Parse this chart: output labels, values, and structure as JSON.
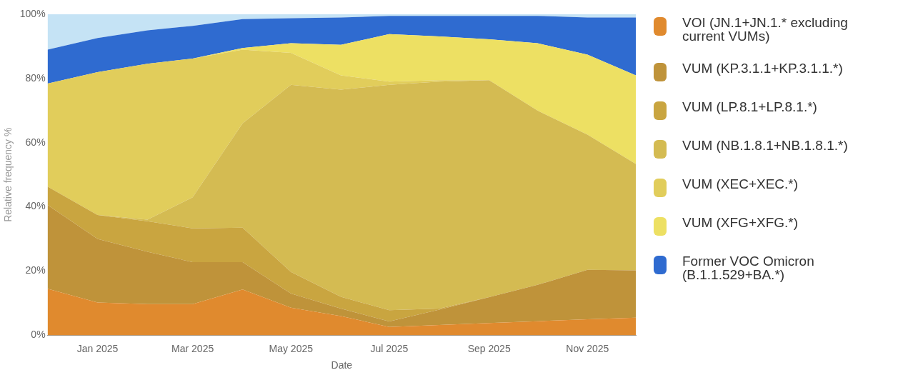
{
  "chart_data": {
    "type": "area",
    "stacked": true,
    "xlabel": "Date",
    "ylabel": "Relative frequency %",
    "x": [
      "2024-12-01",
      "2025-01-01",
      "2025-02-01",
      "2025-03-01",
      "2025-04-01",
      "2025-05-01",
      "2025-06-01",
      "2025-07-01",
      "2025-08-01",
      "2025-09-01",
      "2025-10-01",
      "2025-11-01",
      "2025-12-01"
    ],
    "xlim": [
      "2024-12-01",
      "2025-12-01"
    ],
    "xticks": [
      {
        "value": "2025-01-01",
        "label": "Jan 2025"
      },
      {
        "value": "2025-03-01",
        "label": "Mar 2025"
      },
      {
        "value": "2025-05-01",
        "label": "May 2025"
      },
      {
        "value": "2025-07-01",
        "label": "Jul 2025"
      },
      {
        "value": "2025-09-01",
        "label": "Sep 2025"
      },
      {
        "value": "2025-11-01",
        "label": "Nov 2025"
      }
    ],
    "ylim": [
      0,
      100
    ],
    "yticks": [
      {
        "value": 0,
        "label": "0%"
      },
      {
        "value": 20,
        "label": "20%"
      },
      {
        "value": 40,
        "label": "40%"
      },
      {
        "value": 60,
        "label": "60%"
      },
      {
        "value": 80,
        "label": "80%"
      },
      {
        "value": 100,
        "label": "100%"
      }
    ],
    "legend": "right",
    "marker": "none",
    "series": [
      {
        "name": "VOI (JN.1+JN.1.* excluding current VUMs)",
        "color": "#e08a2e",
        "values": [
          14.5,
          10.2,
          9.7,
          9.7,
          14.3,
          8.6,
          6,
          2.6,
          3.2,
          3.8,
          4.4,
          5,
          5.5
        ]
      },
      {
        "name": "VUM (KP.3.1.1+KP.3.1.1.*)",
        "color": "#bf933a",
        "values": [
          26.1,
          19.8,
          16.3,
          13.1,
          8.5,
          4.4,
          2.3,
          1.7,
          4.8,
          8.1,
          11.3,
          15.4,
          14.7
        ]
      },
      {
        "name": "VUM (LP.8.1+LP.8.1.*)",
        "color": "#c9a540",
        "values": [
          5.7,
          7.5,
          9.5,
          10.5,
          10.7,
          6.7,
          3.7,
          3.5,
          0.3,
          0,
          0,
          0,
          0
        ]
      },
      {
        "name": "VUM (NB.1.8.1+NB.1.8.1.*)",
        "color": "#d4bb52",
        "values": [
          0,
          0,
          0.5,
          9.7,
          32.5,
          58.3,
          64.5,
          70.2,
          70.7,
          67.6,
          54.3,
          42.1,
          33.2
        ]
      },
      {
        "name": "VUM (XEC+XEC.*)",
        "color": "#e1cd5b",
        "values": [
          32.1,
          44.5,
          48.6,
          43.2,
          23,
          10,
          4.5,
          1,
          0.5,
          0,
          0,
          0,
          0
        ]
      },
      {
        "name": "VUM (XFG+XFG.*)",
        "color": "#ede063",
        "values": [
          0,
          0,
          0,
          0,
          0.5,
          3,
          9.5,
          14.8,
          13.6,
          12.7,
          21,
          24.9,
          27.6
        ]
      },
      {
        "name": "Former VOC Omicron (B.1.1.529+BA.*)",
        "color": "#2f6bd0",
        "values": [
          10.6,
          10.6,
          10.4,
          10.2,
          9,
          7.8,
          8.5,
          5.7,
          6.4,
          7.3,
          8.5,
          11.6,
          18
        ]
      },
      {
        "color": "#c5e3f5",
        "values": [
          11,
          7.4,
          5,
          3.6,
          1.5,
          1.2,
          1,
          0.5,
          0.5,
          0.5,
          0.5,
          1,
          1
        ]
      }
    ]
  }
}
